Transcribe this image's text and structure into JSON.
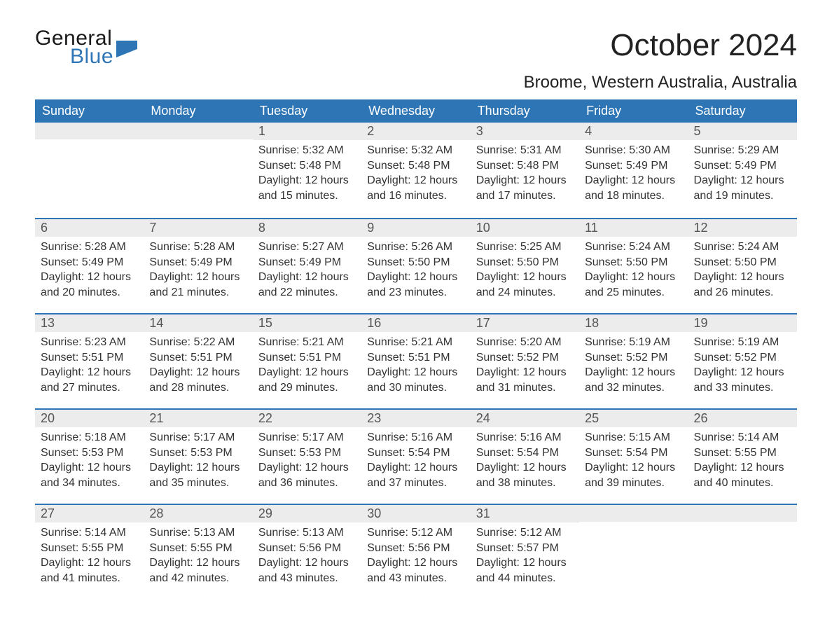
{
  "logo": {
    "general": "General",
    "blue": "Blue",
    "icon_color": "#2e75b6"
  },
  "title": "October 2024",
  "location": "Broome, Western Australia, Australia",
  "colors": {
    "header_bg": "#2e75b6",
    "header_text": "#ffffff",
    "daynum_bg": "#ececec",
    "border": "#2e75b6",
    "body_text": "#333333"
  },
  "day_names": [
    "Sunday",
    "Monday",
    "Tuesday",
    "Wednesday",
    "Thursday",
    "Friday",
    "Saturday"
  ],
  "weeks": [
    [
      {
        "day": "",
        "sunrise": "",
        "sunset": "",
        "daylight": ""
      },
      {
        "day": "",
        "sunrise": "",
        "sunset": "",
        "daylight": ""
      },
      {
        "day": "1",
        "sunrise": "Sunrise: 5:32 AM",
        "sunset": "Sunset: 5:48 PM",
        "daylight": "Daylight: 12 hours and 15 minutes."
      },
      {
        "day": "2",
        "sunrise": "Sunrise: 5:32 AM",
        "sunset": "Sunset: 5:48 PM",
        "daylight": "Daylight: 12 hours and 16 minutes."
      },
      {
        "day": "3",
        "sunrise": "Sunrise: 5:31 AM",
        "sunset": "Sunset: 5:48 PM",
        "daylight": "Daylight: 12 hours and 17 minutes."
      },
      {
        "day": "4",
        "sunrise": "Sunrise: 5:30 AM",
        "sunset": "Sunset: 5:49 PM",
        "daylight": "Daylight: 12 hours and 18 minutes."
      },
      {
        "day": "5",
        "sunrise": "Sunrise: 5:29 AM",
        "sunset": "Sunset: 5:49 PM",
        "daylight": "Daylight: 12 hours and 19 minutes."
      }
    ],
    [
      {
        "day": "6",
        "sunrise": "Sunrise: 5:28 AM",
        "sunset": "Sunset: 5:49 PM",
        "daylight": "Daylight: 12 hours and 20 minutes."
      },
      {
        "day": "7",
        "sunrise": "Sunrise: 5:28 AM",
        "sunset": "Sunset: 5:49 PM",
        "daylight": "Daylight: 12 hours and 21 minutes."
      },
      {
        "day": "8",
        "sunrise": "Sunrise: 5:27 AM",
        "sunset": "Sunset: 5:49 PM",
        "daylight": "Daylight: 12 hours and 22 minutes."
      },
      {
        "day": "9",
        "sunrise": "Sunrise: 5:26 AM",
        "sunset": "Sunset: 5:50 PM",
        "daylight": "Daylight: 12 hours and 23 minutes."
      },
      {
        "day": "10",
        "sunrise": "Sunrise: 5:25 AM",
        "sunset": "Sunset: 5:50 PM",
        "daylight": "Daylight: 12 hours and 24 minutes."
      },
      {
        "day": "11",
        "sunrise": "Sunrise: 5:24 AM",
        "sunset": "Sunset: 5:50 PM",
        "daylight": "Daylight: 12 hours and 25 minutes."
      },
      {
        "day": "12",
        "sunrise": "Sunrise: 5:24 AM",
        "sunset": "Sunset: 5:50 PM",
        "daylight": "Daylight: 12 hours and 26 minutes."
      }
    ],
    [
      {
        "day": "13",
        "sunrise": "Sunrise: 5:23 AM",
        "sunset": "Sunset: 5:51 PM",
        "daylight": "Daylight: 12 hours and 27 minutes."
      },
      {
        "day": "14",
        "sunrise": "Sunrise: 5:22 AM",
        "sunset": "Sunset: 5:51 PM",
        "daylight": "Daylight: 12 hours and 28 minutes."
      },
      {
        "day": "15",
        "sunrise": "Sunrise: 5:21 AM",
        "sunset": "Sunset: 5:51 PM",
        "daylight": "Daylight: 12 hours and 29 minutes."
      },
      {
        "day": "16",
        "sunrise": "Sunrise: 5:21 AM",
        "sunset": "Sunset: 5:51 PM",
        "daylight": "Daylight: 12 hours and 30 minutes."
      },
      {
        "day": "17",
        "sunrise": "Sunrise: 5:20 AM",
        "sunset": "Sunset: 5:52 PM",
        "daylight": "Daylight: 12 hours and 31 minutes."
      },
      {
        "day": "18",
        "sunrise": "Sunrise: 5:19 AM",
        "sunset": "Sunset: 5:52 PM",
        "daylight": "Daylight: 12 hours and 32 minutes."
      },
      {
        "day": "19",
        "sunrise": "Sunrise: 5:19 AM",
        "sunset": "Sunset: 5:52 PM",
        "daylight": "Daylight: 12 hours and 33 minutes."
      }
    ],
    [
      {
        "day": "20",
        "sunrise": "Sunrise: 5:18 AM",
        "sunset": "Sunset: 5:53 PM",
        "daylight": "Daylight: 12 hours and 34 minutes."
      },
      {
        "day": "21",
        "sunrise": "Sunrise: 5:17 AM",
        "sunset": "Sunset: 5:53 PM",
        "daylight": "Daylight: 12 hours and 35 minutes."
      },
      {
        "day": "22",
        "sunrise": "Sunrise: 5:17 AM",
        "sunset": "Sunset: 5:53 PM",
        "daylight": "Daylight: 12 hours and 36 minutes."
      },
      {
        "day": "23",
        "sunrise": "Sunrise: 5:16 AM",
        "sunset": "Sunset: 5:54 PM",
        "daylight": "Daylight: 12 hours and 37 minutes."
      },
      {
        "day": "24",
        "sunrise": "Sunrise: 5:16 AM",
        "sunset": "Sunset: 5:54 PM",
        "daylight": "Daylight: 12 hours and 38 minutes."
      },
      {
        "day": "25",
        "sunrise": "Sunrise: 5:15 AM",
        "sunset": "Sunset: 5:54 PM",
        "daylight": "Daylight: 12 hours and 39 minutes."
      },
      {
        "day": "26",
        "sunrise": "Sunrise: 5:14 AM",
        "sunset": "Sunset: 5:55 PM",
        "daylight": "Daylight: 12 hours and 40 minutes."
      }
    ],
    [
      {
        "day": "27",
        "sunrise": "Sunrise: 5:14 AM",
        "sunset": "Sunset: 5:55 PM",
        "daylight": "Daylight: 12 hours and 41 minutes."
      },
      {
        "day": "28",
        "sunrise": "Sunrise: 5:13 AM",
        "sunset": "Sunset: 5:55 PM",
        "daylight": "Daylight: 12 hours and 42 minutes."
      },
      {
        "day": "29",
        "sunrise": "Sunrise: 5:13 AM",
        "sunset": "Sunset: 5:56 PM",
        "daylight": "Daylight: 12 hours and 43 minutes."
      },
      {
        "day": "30",
        "sunrise": "Sunrise: 5:12 AM",
        "sunset": "Sunset: 5:56 PM",
        "daylight": "Daylight: 12 hours and 43 minutes."
      },
      {
        "day": "31",
        "sunrise": "Sunrise: 5:12 AM",
        "sunset": "Sunset: 5:57 PM",
        "daylight": "Daylight: 12 hours and 44 minutes."
      },
      {
        "day": "",
        "sunrise": "",
        "sunset": "",
        "daylight": ""
      },
      {
        "day": "",
        "sunrise": "",
        "sunset": "",
        "daylight": ""
      }
    ]
  ]
}
